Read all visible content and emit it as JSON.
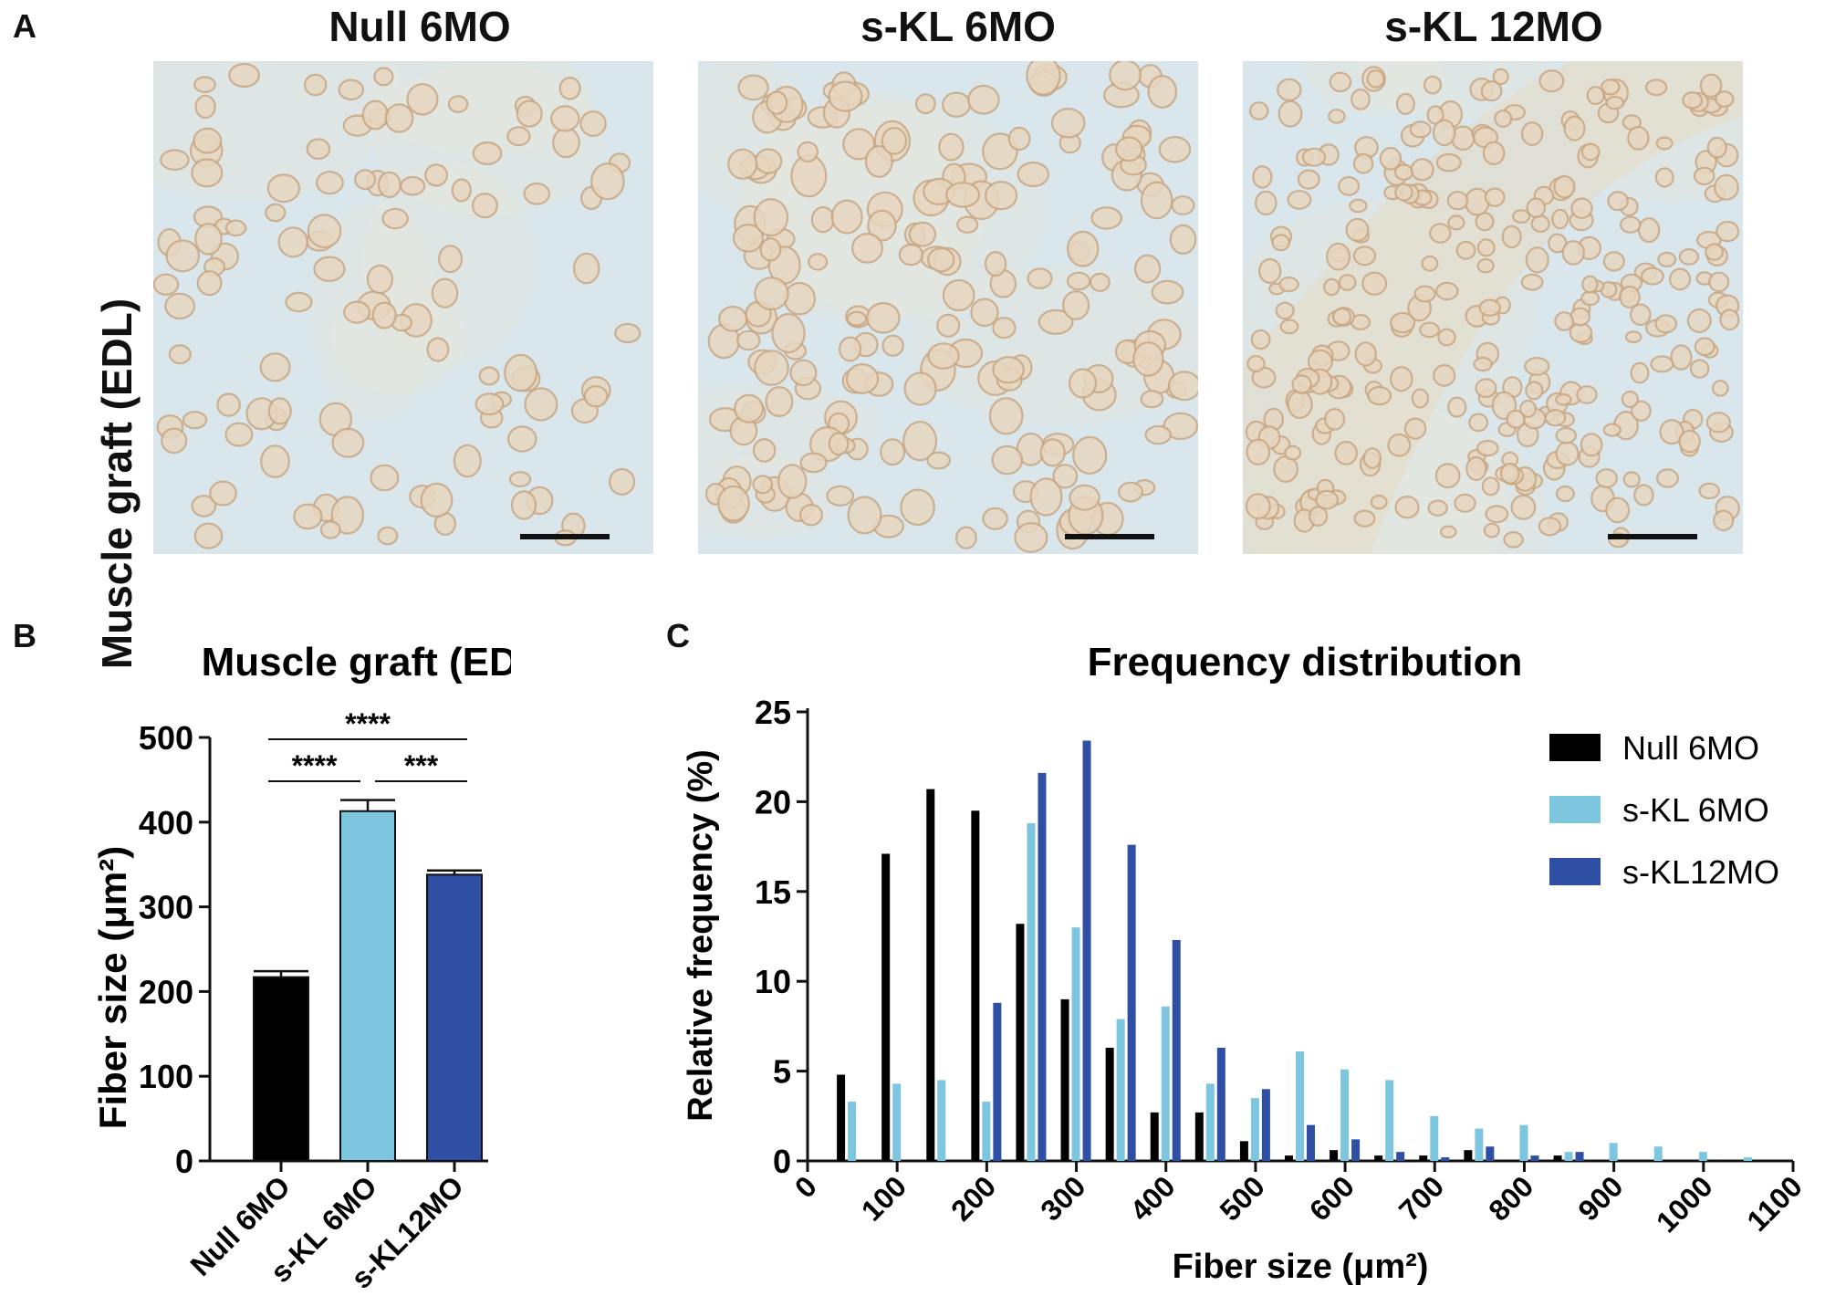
{
  "panelA": {
    "letter": "A",
    "row_label": "Muscle graft (EDL)",
    "columns": [
      "Null 6MO",
      "s-KL 6MO",
      "s-KL 12MO"
    ]
  },
  "panelB": {
    "letter": "B",
    "significance": {
      "null_vs_skl6": "****",
      "skl6_vs_skl12": "***",
      "null_vs_skl12": "****"
    }
  },
  "panelC": {
    "letter": "C"
  },
  "colors": {
    "null": "#000000",
    "skl6": "#7ec6df",
    "skl12": "#2e4fa3",
    "tissue_bg": "#d9e6ec",
    "fiber": "#c8a682"
  },
  "chart_data": [
    {
      "type": "bar",
      "title": "Muscle graft (EDL)",
      "xlabel": "",
      "ylabel": "Fiber size (μm²)",
      "ylim": [
        0,
        500
      ],
      "yticks": [
        0,
        100,
        200,
        300,
        400,
        500
      ],
      "categories": [
        "Null 6MO",
        "s-KL 6MO",
        "s-KL12MO"
      ],
      "values": [
        217,
        413,
        338
      ],
      "errors": [
        7,
        13,
        5
      ],
      "colors": [
        "#000000",
        "#7ec6df",
        "#2e4fa3"
      ]
    },
    {
      "type": "bar",
      "title": "Frequency distribution",
      "xlabel": "Fiber size (μm²)",
      "ylabel": "Relative frequency (%)",
      "xlim": [
        0,
        1100
      ],
      "ylim": [
        0,
        25
      ],
      "xticks": [
        0,
        100,
        200,
        300,
        400,
        500,
        600,
        700,
        800,
        900,
        1000,
        1100
      ],
      "yticks": [
        0,
        5,
        10,
        15,
        20,
        25
      ],
      "legend_position": "top-right",
      "bin_centers": [
        50,
        100,
        150,
        200,
        250,
        300,
        350,
        400,
        450,
        500,
        550,
        600,
        650,
        700,
        750,
        800,
        850,
        900,
        950,
        1000,
        1050
      ],
      "series": [
        {
          "name": "Null 6MO",
          "color": "#000000",
          "values": [
            4.8,
            17.1,
            20.7,
            19.5,
            13.2,
            9.0,
            6.3,
            2.7,
            2.7,
            1.1,
            0.3,
            0.6,
            0.3,
            0.3,
            0.6,
            0,
            0.3,
            0,
            0,
            0,
            0
          ]
        },
        {
          "name": "s-KL 6MO",
          "color": "#7ec6df",
          "values": [
            3.3,
            4.3,
            4.5,
            3.3,
            18.8,
            13.0,
            7.9,
            8.6,
            4.3,
            3.5,
            6.1,
            5.1,
            4.5,
            2.5,
            1.8,
            2.0,
            0.5,
            1.0,
            0.8,
            0.5,
            0.2
          ]
        },
        {
          "name": "s-KL12MO",
          "color": "#2e4fa3",
          "values": [
            0,
            0,
            0,
            8.8,
            21.6,
            23.4,
            17.6,
            12.3,
            6.3,
            4.0,
            2.0,
            1.2,
            0.5,
            0.2,
            0.8,
            0.3,
            0.5,
            0,
            0,
            0,
            0
          ]
        }
      ]
    }
  ]
}
